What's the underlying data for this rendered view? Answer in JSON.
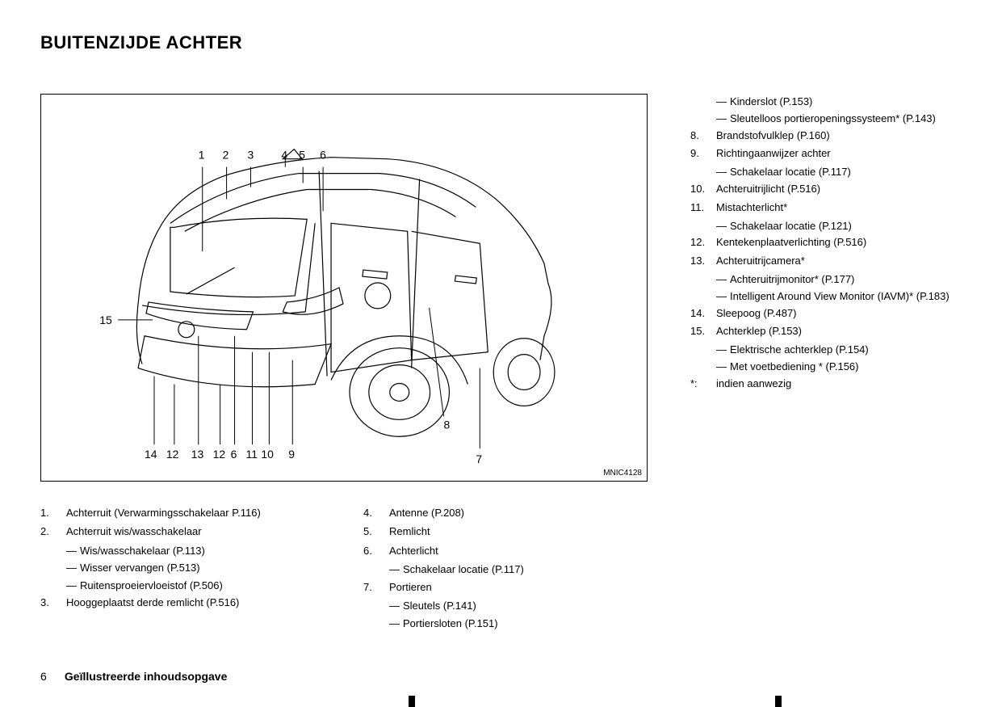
{
  "page_title": "BUITENZIJDE ACHTER",
  "figure_id": "MNIC4128",
  "callouts_top": [
    "1",
    "2",
    "3",
    "4",
    "5",
    "6"
  ],
  "callouts_bottom_left": [
    "15"
  ],
  "callouts_bottom": [
    "14",
    "12",
    "13",
    "12",
    "6",
    "11",
    "10",
    "9"
  ],
  "callouts_right": [
    "7",
    "8"
  ],
  "bottom_col1": [
    {
      "n": "1.",
      "t": "Achterruit (Verwarmingsschakelaar P.116)"
    },
    {
      "n": "2.",
      "t": "Achterruit wis/wasschakelaar",
      "subs": [
        "Wis/wasschakelaar (P.113)",
        "Wisser vervangen (P.513)",
        "Ruitensproeiervloeistof (P.506)"
      ]
    },
    {
      "n": "3.",
      "t": "Hooggeplaatst derde remlicht (P.516)"
    }
  ],
  "bottom_col2": [
    {
      "n": "4.",
      "t": "Antenne (P.208)"
    },
    {
      "n": "5.",
      "t": "Remlicht"
    },
    {
      "n": "6.",
      "t": "Achterlicht",
      "subs": [
        "Schakelaar locatie (P.117)"
      ]
    },
    {
      "n": "7.",
      "t": "Portieren",
      "subs": [
        "Sleutels (P.141)",
        "Portiersloten (P.151)"
      ]
    }
  ],
  "right_col": [
    {
      "n": "",
      "t": "",
      "subs": [
        "Kinderslot (P.153)",
        "Sleutelloos portieropeningssysteem* (P.143)"
      ]
    },
    {
      "n": "8.",
      "t": "Brandstofvulklep (P.160)"
    },
    {
      "n": "9.",
      "t": "Richtingaanwijzer achter",
      "subs": [
        "Schakelaar locatie (P.117)"
      ]
    },
    {
      "n": "10.",
      "t": "Achteruitrijlicht (P.516)"
    },
    {
      "n": "11.",
      "t": "Mistachterlicht*",
      "subs": [
        "Schakelaar locatie (P.121)"
      ]
    },
    {
      "n": "12.",
      "t": "Kentekenplaatverlichting (P.516)"
    },
    {
      "n": "13.",
      "t": "Achteruitrijcamera*",
      "subs": [
        "Achteruitrijmonitor* (P.177)",
        "Intelligent Around View Monitor (IAVM)* (P.183)"
      ]
    },
    {
      "n": "14.",
      "t": "Sleepoog (P.487)"
    },
    {
      "n": "15.",
      "t": "Achterklep (P.153)",
      "subs": [
        "Elektrische achterklep (P.154)",
        "Met voetbediening * (P.156)"
      ]
    },
    {
      "n": "*:",
      "t": "indien aanwezig"
    }
  ],
  "footer_page": "6",
  "footer_title": "Geïllustreerde inhoudsopgave",
  "colors": {
    "text": "#000000",
    "bg": "#ffffff",
    "border": "#000000"
  }
}
